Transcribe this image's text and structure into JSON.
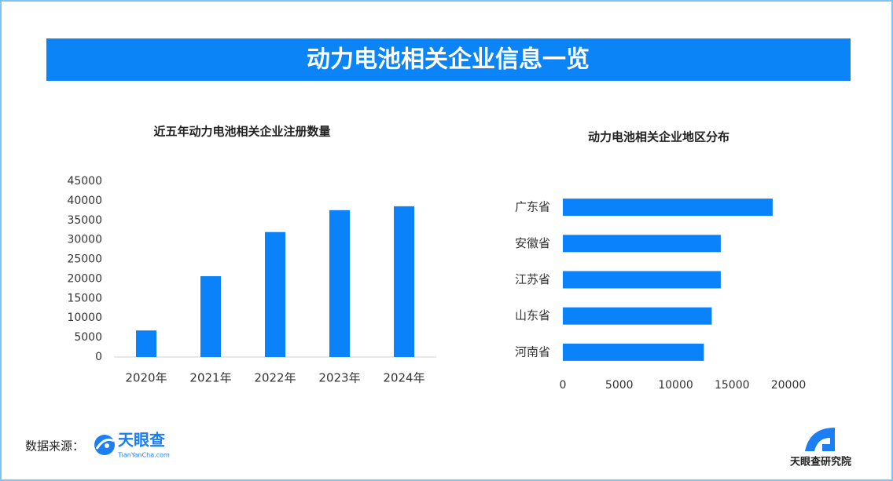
{
  "banner_title": "动力电池相关企业信息一览",
  "chart_data": [
    {
      "type": "bar",
      "title": "近五年动力电池相关企业注册数量",
      "color": "#0a83fa",
      "categories": [
        "2020年",
        "2021年",
        "2022年",
        "2023年",
        "2024年"
      ],
      "values": [
        6800,
        20700,
        32000,
        37600,
        38600
      ],
      "ylim": [
        0,
        45000
      ],
      "yticks": [
        0,
        5000,
        10000,
        15000,
        20000,
        25000,
        30000,
        35000,
        40000,
        45000
      ],
      "grid": false
    },
    {
      "type": "barh",
      "title": "动力电池相关企业地区分布",
      "color": "#0a83fa",
      "categories": [
        "广东省",
        "安徽省",
        "江苏省",
        "山东省",
        "河南省"
      ],
      "values": [
        18600,
        14000,
        14000,
        13200,
        12500
      ],
      "xlim": [
        0,
        20000
      ],
      "xticks": [
        0,
        5000,
        10000,
        15000,
        20000
      ],
      "grid": false
    }
  ],
  "footer": {
    "source_label": "数据来源：",
    "logo_name": "天眼查",
    "logo_url": "TianYanCha.com",
    "institute": "天眼查研究院"
  }
}
